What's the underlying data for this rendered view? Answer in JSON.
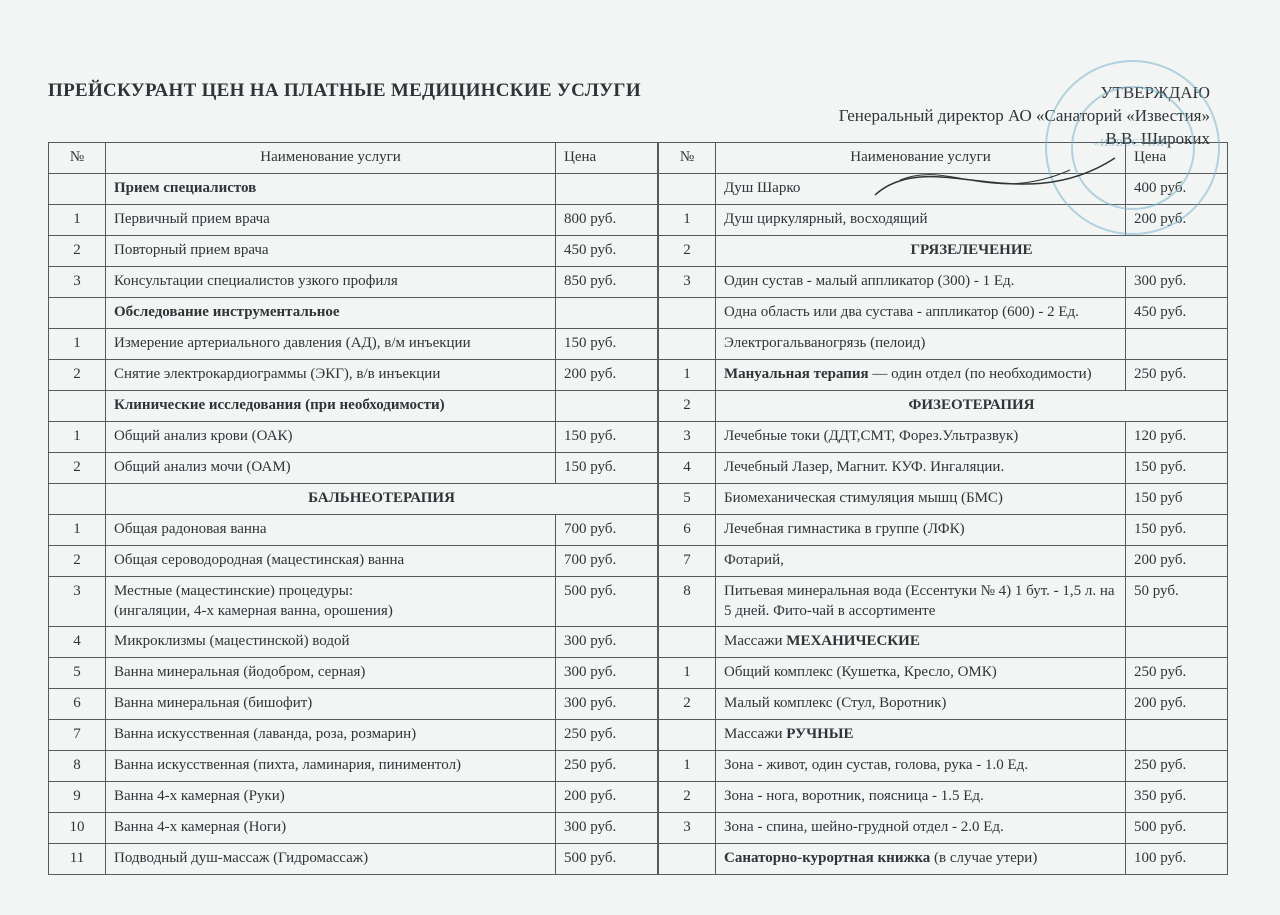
{
  "doc": {
    "title": "ПРЕЙСКУРАНТ ЦЕН НА ПЛАТНЫЕ МЕДИЦИНСКИЕ УСЛУГИ",
    "approval_line1": "УТВЕРЖДАЮ",
    "approval_line2": "Генеральный директор АО «Санаторий «Известия»",
    "approval_line3": "В.В. Широких"
  },
  "headers": {
    "num": "№",
    "name": "Наименование услуги",
    "price": "Цена"
  },
  "left": [
    {
      "num": "",
      "name": "Прием специалистов",
      "price": "",
      "head": true
    },
    {
      "num": "1",
      "name": "Первичный прием врача",
      "price": "800 руб."
    },
    {
      "num": "2",
      "name": "Повторный прием врача",
      "price": "450 руб."
    },
    {
      "num": "3",
      "name": "Консультации специалистов узкого профиля",
      "price": "850 руб."
    },
    {
      "num": "",
      "name": "Обследование инструментальное",
      "price": "",
      "head": true
    },
    {
      "num": "1",
      "name": "Измерение артериального давления (АД), в/м инъекции",
      "price": "150 руб."
    },
    {
      "num": "2",
      "name": "Снятие электрокардиограммы  (ЭКГ), в/в инъекции",
      "price": "200 руб."
    },
    {
      "num": "",
      "name": "Клинические исследования (при необходимости)",
      "price": "",
      "head": true
    },
    {
      "num": "1",
      "name": "Общий анализ крови (ОАК)",
      "price": "150 руб."
    },
    {
      "num": "2",
      "name": "Общий анализ мочи (ОАМ)",
      "price": "150 руб."
    },
    {
      "num": "",
      "name": "БАЛЬНЕОТЕРАПИЯ",
      "price": "",
      "head": true,
      "center": true
    },
    {
      "num": "1",
      "name": "Общая радоновая ванна",
      "price": "700 руб."
    },
    {
      "num": "2",
      "name": "Общая сероводородная (мацестинская) ванна",
      "price": "700 руб."
    },
    {
      "num": "3",
      "name": " Местные (мацестинские) процедуры:\n(ингаляции,   4-х камерная ванна,  орошения)",
      "price": "500 руб."
    },
    {
      "num": "4",
      "name": "Микроклизмы (мацестинской) водой",
      "price": "300 руб."
    },
    {
      "num": "5",
      "name": "Ванна минеральная (йодобром, серная)",
      "price": "300 руб."
    },
    {
      "num": "6",
      "name": "Ванна минеральная (бишофит)",
      "price": "300 руб."
    },
    {
      "num": "7",
      "name": "Ванна искусственная (лаванда, роза, розмарин)",
      "price": "250 руб."
    },
    {
      "num": "8",
      "name": "Ванна искусственная (пихта, ламинария, пиниментол)",
      "price": "250 руб."
    },
    {
      "num": "9",
      "name": "Ванна 4-х камерная (Руки)",
      "price": "200 руб."
    },
    {
      "num": "10",
      "name": "Ванна 4-х камерная (Ноги)",
      "price": "300 руб."
    },
    {
      "num": "11",
      "name": "Подводный душ-массаж (Гидромассаж)",
      "price": "500 руб."
    }
  ],
  "right": [
    {
      "num": "",
      "name": "Душ Шарко",
      "price": "400 руб."
    },
    {
      "num": "1",
      "name": "Душ циркулярный, восходящий",
      "price": "200 руб."
    },
    {
      "num": "2",
      "name": "ГРЯЗЕЛЕЧЕНИЕ",
      "price": "",
      "head": true,
      "center": true
    },
    {
      "num": "3",
      "name": "Один сустав - малый аппликатор (300) - 1 Ед.",
      "price": "300 руб."
    },
    {
      "num": "",
      "name": "Одна область или два сустава -  аппликатор (600) - 2 Ед.",
      "price": "450 руб."
    },
    {
      "num": "",
      "name": "Электрогальваногрязь (пелоид)",
      "price": ""
    },
    {
      "num": "1",
      "name_html": "<b>Мануальная терапия</b> — один отдел (по необходимости)",
      "price": "250 руб."
    },
    {
      "num": "2",
      "name": "ФИЗЕОТЕРАПИЯ",
      "price": "",
      "head": true,
      "center": true
    },
    {
      "num": "3",
      "name": "Лечебные токи (ДДТ,СМТ, Форез.Ультразвук)",
      "price": "120 руб."
    },
    {
      "num": "4",
      "name": " Лечебный Лазер, Магнит. КУФ. Ингаляции.",
      "price": "150 руб."
    },
    {
      "num": "5",
      "name": "Биомеханическая стимуляция мышц (БМС)",
      "price": "150 руб"
    },
    {
      "num": "6",
      "name": "Лечебная гимнастика в группе (ЛФК)",
      "price": "150 руб."
    },
    {
      "num": "7",
      "name": "Фотарий,",
      "price": "200 руб."
    },
    {
      "num": "8",
      "name": "Питьевая минеральная вода (Ессентуки № 4) 1 бут. - 1,5 л. на 5 дней. Фито-чай в ассортименте",
      "price": "50 руб."
    },
    {
      "num": "",
      "name_html": "Массажи <b>МЕХАНИЧЕСКИЕ</b>",
      "price": ""
    },
    {
      "num": "1",
      "name": "Общий комплекс (Кушетка, Кресло, ОМК)",
      "price": "250 руб."
    },
    {
      "num": "2",
      "name": "Малый комплекс (Стул, Воротник)",
      "price": "200 руб."
    },
    {
      "num": "",
      "name_html": "Массажи <b>РУЧНЫЕ</b>",
      "price": ""
    },
    {
      "num": "1",
      "name": "Зона  - живот, один сустав, голова, рука - 1.0 Ед.",
      "price": "250 руб."
    },
    {
      "num": "2",
      "name": "Зона  - нога, воротник, поясница - 1.5 Ед.",
      "price": "350 руб."
    },
    {
      "num": "3",
      "name": "Зона - спина, шейно-грудной отдел - 2.0 Ед.",
      "price": "500 руб."
    },
    {
      "num": "",
      "name_html": "<b>Санаторно-курортная книжка</b> (в случае утери)",
      "price": "100 руб."
    }
  ],
  "style": {
    "row_border_color": "#555b5d",
    "background": "#f3f5f4",
    "text_color": "#2e3438",
    "stamp_color": "#7bb4cc"
  }
}
